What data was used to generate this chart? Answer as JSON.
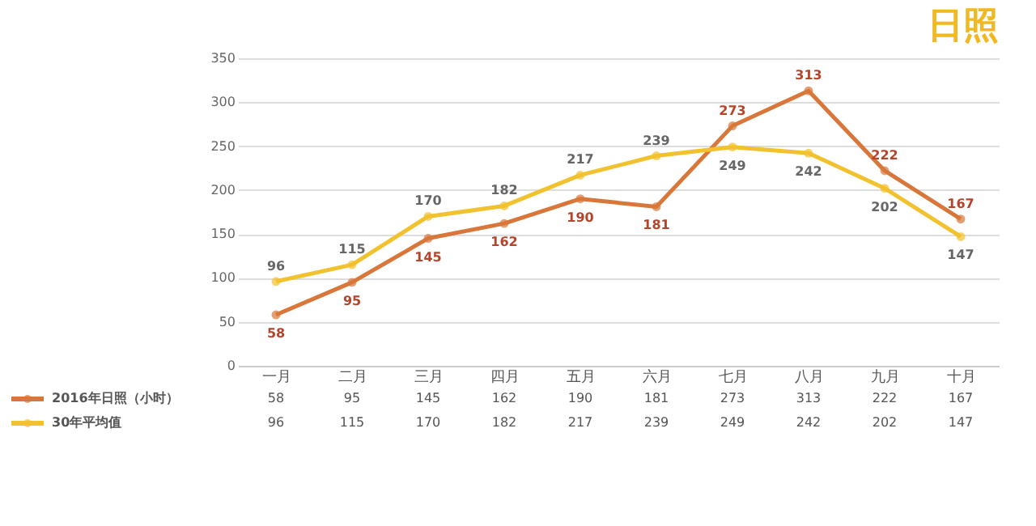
{
  "chart_data": {
    "type": "line",
    "title": "日照",
    "categories": [
      "一月",
      "二月",
      "三月",
      "四月",
      "五月",
      "六月",
      "七月",
      "八月",
      "九月",
      "十月"
    ],
    "series": [
      {
        "name": "2016年日照（小时）",
        "color": "#d9773b",
        "values": [
          58,
          95,
          145,
          162,
          190,
          181,
          273,
          313,
          222,
          167
        ],
        "value_labels": [
          "58",
          "95",
          "145",
          "162",
          "190",
          "181",
          "273",
          "313",
          "222",
          "167"
        ]
      },
      {
        "name": "30年平均值",
        "color": "#f2c12e",
        "values": [
          96,
          115,
          170,
          182,
          217,
          239,
          249,
          242,
          202,
          147
        ],
        "value_labels": [
          "96",
          "115",
          "170",
          "182",
          "217",
          "239",
          "249",
          "242",
          "202",
          "147"
        ]
      }
    ],
    "annotations": [
      {
        "text": "58",
        "x": "一月",
        "y": 58
      },
      {
        "text": "95",
        "x": "二月",
        "y": 95
      },
      {
        "text": "145",
        "x": "三月",
        "y": 145
      },
      {
        "text": "162",
        "x": "四月",
        "y": 162
      },
      {
        "text": "190",
        "x": "五月",
        "y": 190
      },
      {
        "text": "181",
        "x": "六月",
        "y": 181
      },
      {
        "text": "273",
        "x": "七月",
        "y": 273
      },
      {
        "text": "313",
        "x": "八月",
        "y": 313
      },
      {
        "text": "222",
        "x": "九月",
        "y": 222
      },
      {
        "text": "167",
        "x": "十月",
        "y": 167
      },
      {
        "text": "96",
        "x": "一月",
        "y": 96
      },
      {
        "text": "115",
        "x": "二月",
        "y": 115
      },
      {
        "text": "170",
        "x": "三月",
        "y": 170
      },
      {
        "text": "182",
        "x": "四月",
        "y": 182
      },
      {
        "text": "217",
        "x": "五月",
        "y": 217
      },
      {
        "text": "239",
        "x": "六月",
        "y": 239
      },
      {
        "text": "249",
        "x": "七月",
        "y": 249
      },
      {
        "text": "242",
        "x": "八月",
        "y": 242
      },
      {
        "text": "202",
        "x": "九月",
        "y": 202
      },
      {
        "text": "147",
        "x": "十月",
        "y": 147
      }
    ],
    "ylim": [
      0,
      350
    ],
    "yticks": [
      0,
      50,
      100,
      150,
      200,
      250,
      300,
      350
    ],
    "grid": "y",
    "marker": "circle",
    "line_style": "solid",
    "legend": "bottom"
  }
}
